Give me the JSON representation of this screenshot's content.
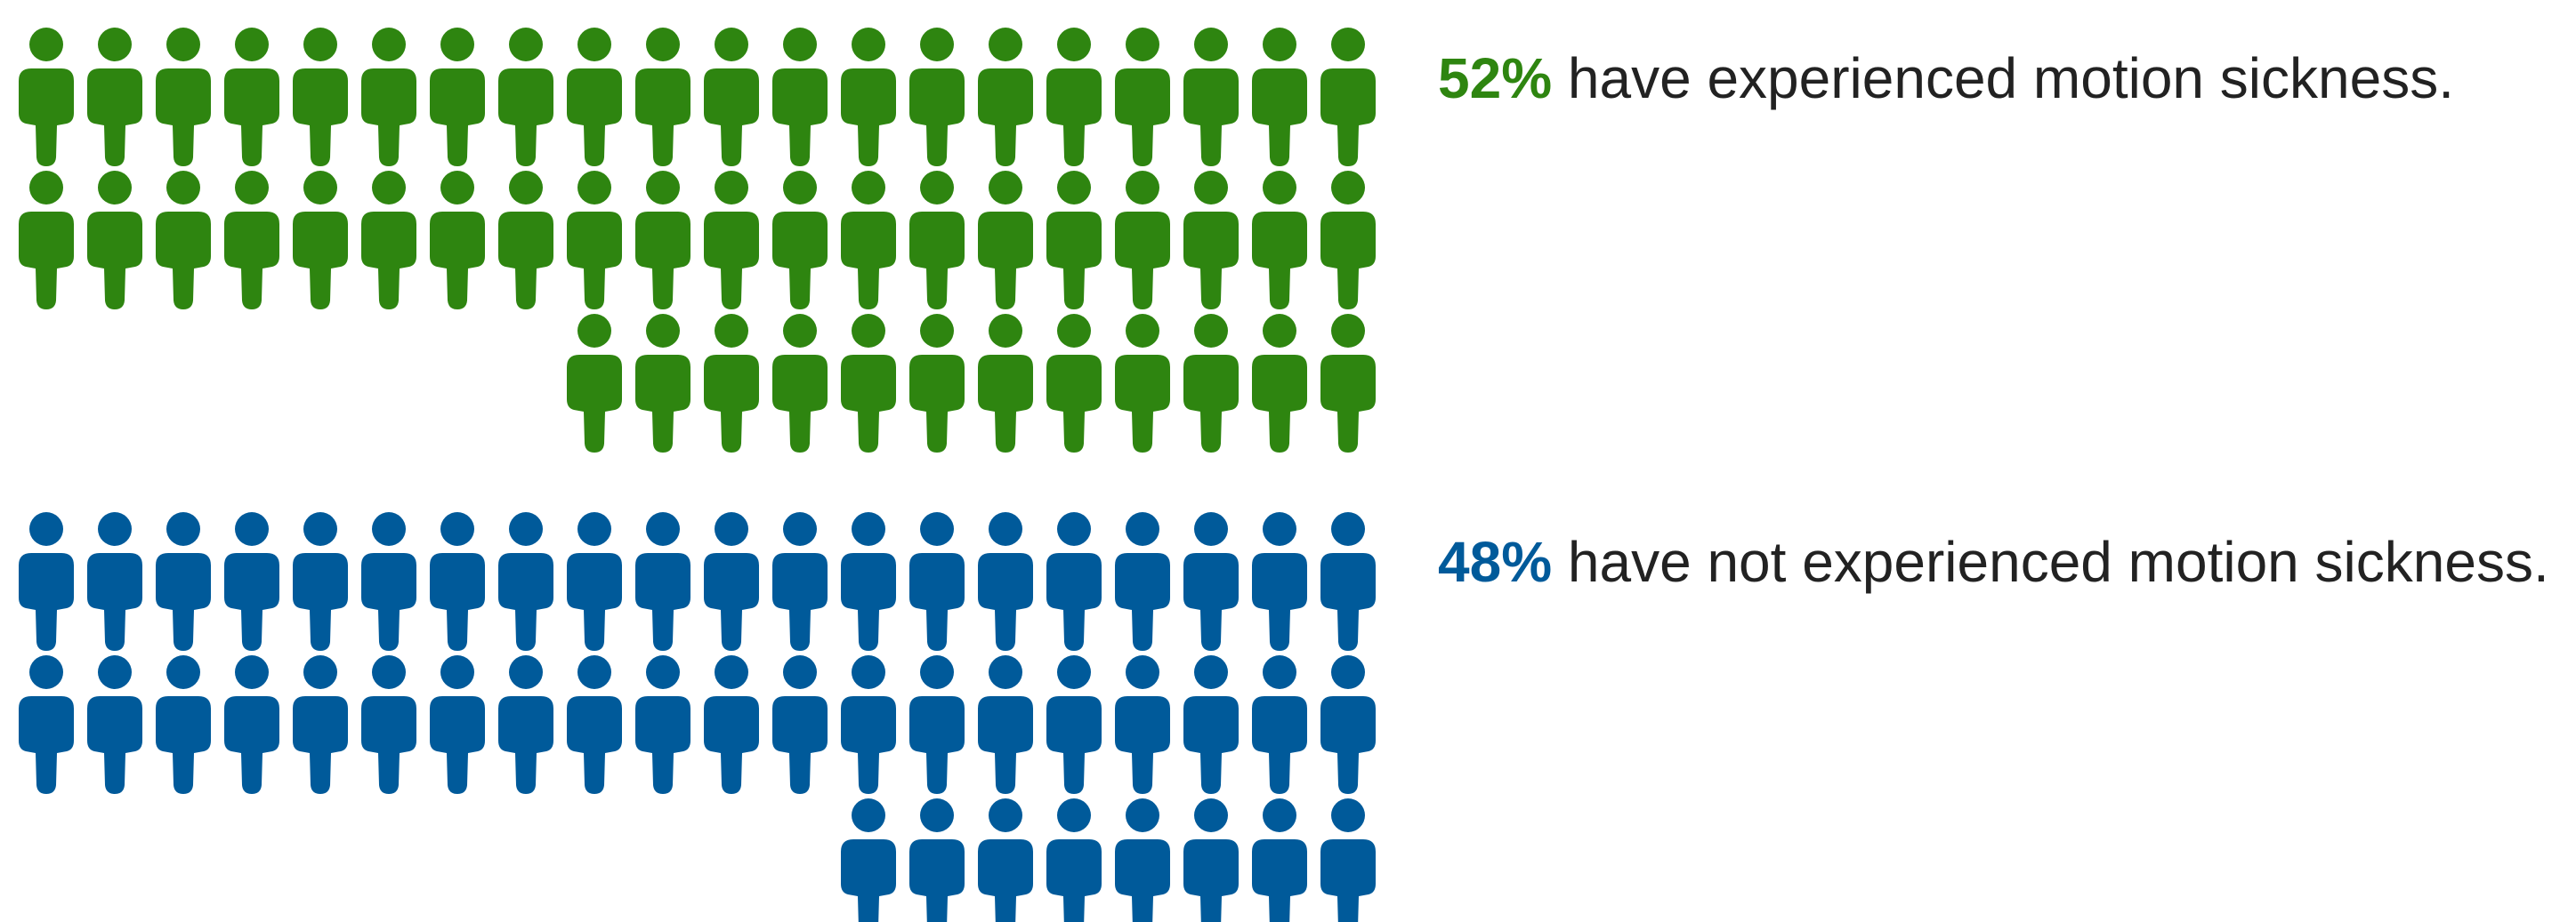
{
  "chart_data": {
    "type": "pictogram",
    "units_per_icon": 1,
    "icons_per_row": 20,
    "series": [
      {
        "percent_label": "52%",
        "text": "have experienced motion sickness.",
        "value": 52,
        "color": "#2e8510"
      },
      {
        "percent_label": "48%",
        "text": "have not experienced motion sickness.",
        "value": 48,
        "color": "#005a9a"
      }
    ]
  }
}
